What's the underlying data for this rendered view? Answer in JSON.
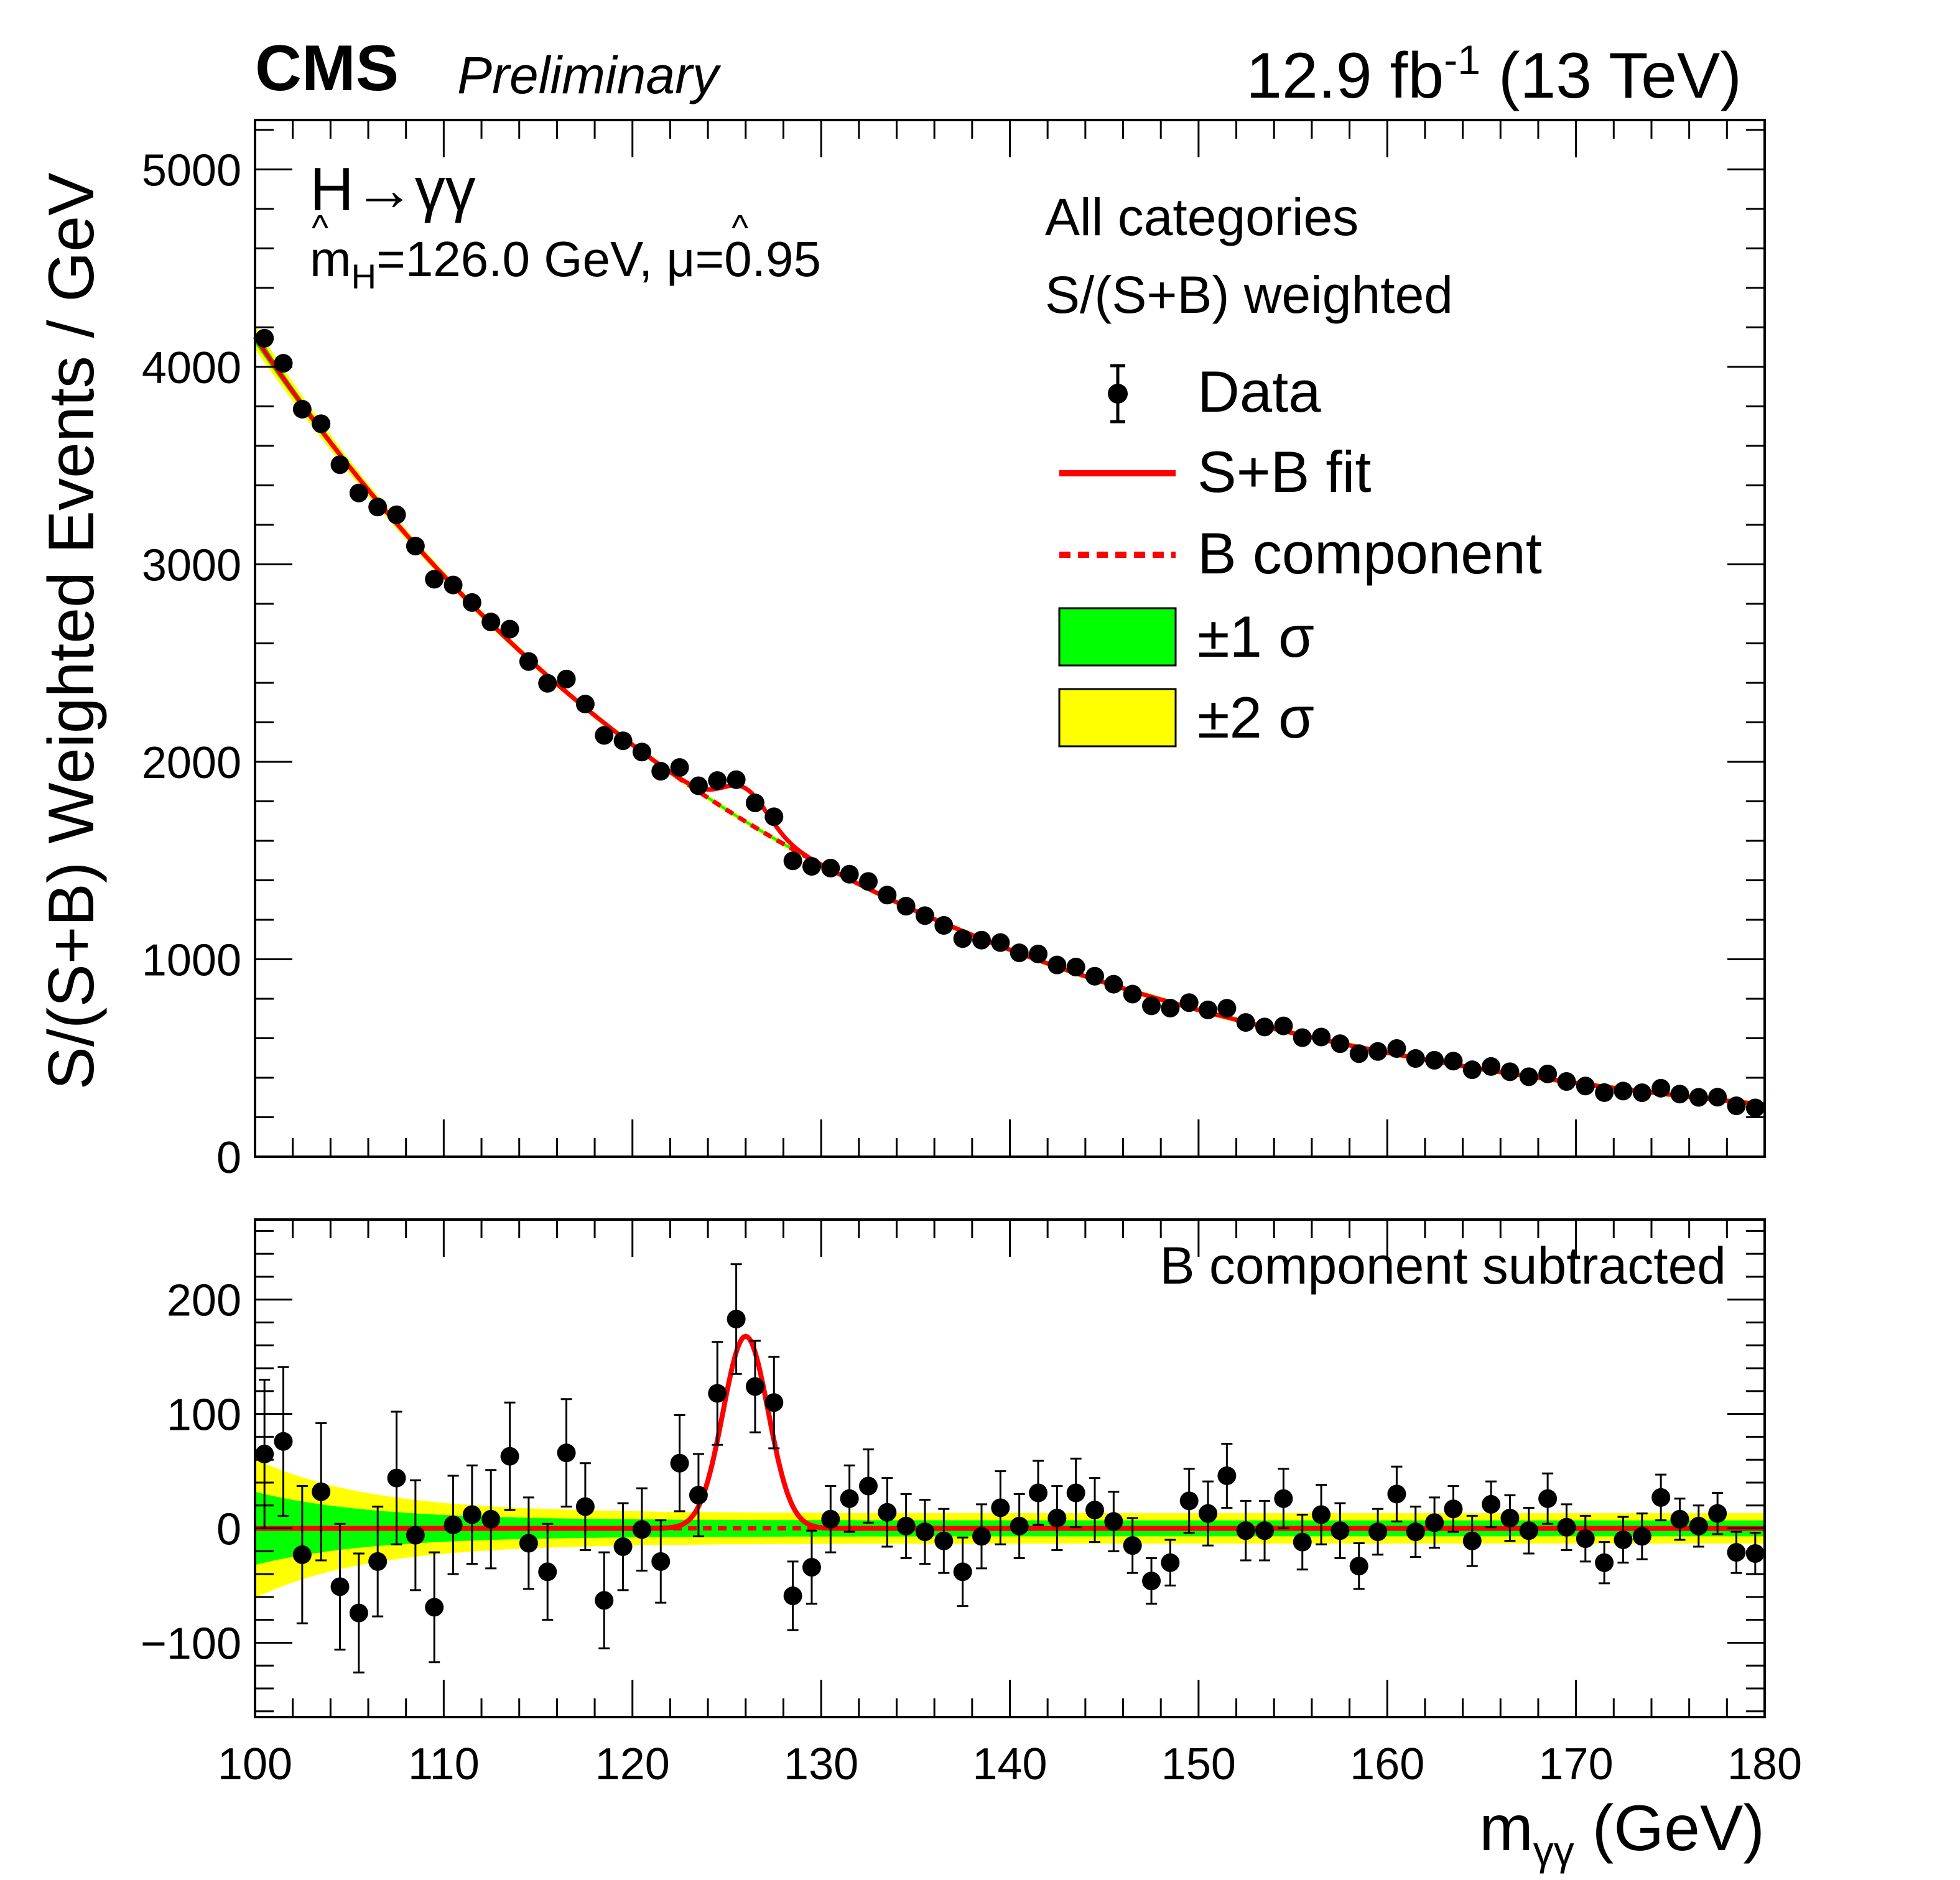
{
  "chart_data": {
    "type": "scatter",
    "header": {
      "experiment": "CMS",
      "status": "Preliminary",
      "lumi_value": "12.9 fb",
      "lumi_exp": "-1",
      "energy": " (13 TeV)"
    },
    "channel": "H→γγ",
    "fit_result": "m̂H=126.0 GeV, μ̂=0.95",
    "fit_result_parts": {
      "m_base": "m",
      "m_sub": "H",
      "m_rest": "=126.0 GeV, ",
      "mu_part": "μ",
      "mu_rest": "=0.95"
    },
    "category_text": "All categories",
    "weighting_text": "S/(S+B) weighted",
    "legend": [
      {
        "key": "data",
        "label": "Data"
      },
      {
        "key": "sb_fit",
        "label": "S+B fit"
      },
      {
        "key": "b_component",
        "label": "B component"
      },
      {
        "key": "band1",
        "label": "±1 σ"
      },
      {
        "key": "band2",
        "label": "±2 σ"
      }
    ],
    "colors": {
      "fit": "#ff0000",
      "band1": "#00ff00",
      "band2": "#ffff00",
      "data": "#000000"
    },
    "main_panel": {
      "ylabel": "S/(S+B) Weighted Events / GeV",
      "ylim": [
        0,
        5250
      ],
      "yticks": [
        0,
        1000,
        2000,
        3000,
        4000,
        5000
      ],
      "ytick_labels": [
        "0",
        "1000",
        "2000",
        "3000",
        "4000",
        "5000"
      ]
    },
    "ratio_panel": {
      "title": "B component subtracted",
      "ylim": [
        -165,
        270
      ],
      "yticks": [
        -100,
        0,
        100,
        200
      ],
      "ytick_labels": [
        "−100",
        "0",
        "100",
        "200"
      ]
    },
    "xaxis": {
      "label": "mγγ (GeV)",
      "label_main": "m",
      "label_sub": "γγ",
      "label_unit": " (GeV)",
      "xlim": [
        100,
        180
      ],
      "xticks": [
        100,
        110,
        120,
        130,
        140,
        150,
        160,
        170,
        180
      ],
      "xtick_labels": [
        "100",
        "110",
        "120",
        "130",
        "140",
        "150",
        "160",
        "170",
        "180"
      ]
    },
    "model": {
      "bkg_a": 4080,
      "bkg_a_x": 100.5,
      "bkg_slope": 0.0344,
      "signal_mass": 126.0,
      "signal_height": 168,
      "signal_sigma": 1.2
    },
    "bins": {
      "centers": [
        100.5,
        101.5,
        102.5,
        103.5,
        104.5,
        105.5,
        106.5,
        107.5,
        108.5,
        109.5,
        110.5,
        111.5,
        112.5,
        113.5,
        114.5,
        115.5,
        116.5,
        117.5,
        118.5,
        119.5,
        120.5,
        121.5,
        122.5,
        123.5,
        124.5,
        125.5,
        126.5,
        127.5,
        128.5,
        129.5,
        130.5,
        131.5,
        132.5,
        133.5,
        134.5,
        135.5,
        136.5,
        137.5,
        138.5,
        139.5,
        140.5,
        141.5,
        142.5,
        143.5,
        144.5,
        145.5,
        146.5,
        147.5,
        148.5,
        149.5,
        150.5,
        151.5,
        152.5,
        153.5,
        154.5,
        155.5,
        156.5,
        157.5,
        158.5,
        159.5,
        160.5,
        161.5,
        162.5,
        163.5,
        164.5,
        165.5,
        166.5,
        167.5,
        168.5,
        169.5,
        170.5,
        171.5,
        172.5,
        173.5,
        174.5,
        175.5,
        176.5,
        177.5,
        178.5,
        179.5
      ],
      "subtracted": [
        65,
        76,
        -23,
        32,
        -51,
        -74,
        -29,
        44,
        -6,
        -69,
        3,
        12,
        8,
        63,
        -13,
        -38,
        66,
        19,
        -63,
        -16,
        -1,
        -29,
        57,
        29,
        118,
        183,
        124,
        110,
        -59,
        -34,
        8,
        26,
        37,
        14,
        2,
        -3,
        -11,
        -38,
        -7,
        18,
        2,
        31,
        9,
        31,
        16,
        6,
        -15,
        -46,
        -30,
        24,
        13,
        46,
        -2,
        -2,
        26,
        -12,
        12,
        -2,
        -33,
        -3,
        30,
        -3,
        5,
        17,
        -11,
        21,
        9,
        -2,
        26,
        1,
        -9,
        -30,
        -10,
        -7,
        27,
        8,
        2,
        13,
        -21,
        -22
      ],
      "errors_main": [
        28,
        28,
        27,
        27,
        26,
        26,
        25,
        25,
        24,
        24,
        23,
        23,
        22,
        22,
        22,
        21,
        21,
        20,
        20,
        20,
        19,
        19,
        19,
        18,
        18,
        18,
        17,
        17,
        17,
        17,
        16,
        16,
        16,
        15,
        15,
        15,
        15,
        14,
        14,
        14,
        14,
        14,
        13,
        13,
        13,
        13,
        13,
        12,
        12,
        12,
        12,
        12,
        12,
        11,
        11,
        11,
        11,
        11,
        11,
        11,
        10,
        10,
        10,
        10,
        10,
        10,
        10,
        10,
        9,
        9,
        9,
        9,
        9,
        9,
        9,
        9,
        9,
        8,
        8,
        8
      ],
      "errors_sub": [
        65,
        65,
        60,
        60,
        55,
        52,
        48,
        58,
        48,
        48,
        43,
        43,
        43,
        47,
        40,
        42,
        47,
        38,
        42,
        38,
        36,
        36,
        42,
        36,
        45,
        48,
        40,
        40,
        30,
        32,
        29,
        29,
        32,
        30,
        28,
        28,
        28,
        30,
        28,
        32,
        28,
        28,
        28,
        30,
        28,
        26,
        24,
        20,
        20,
        28,
        28,
        28,
        26,
        26,
        26,
        24,
        26,
        24,
        20,
        20,
        24,
        22,
        22,
        20,
        22,
        20,
        20,
        20,
        22,
        20,
        20,
        18,
        20,
        20,
        20,
        18,
        18,
        18,
        18,
        18
      ]
    }
  }
}
